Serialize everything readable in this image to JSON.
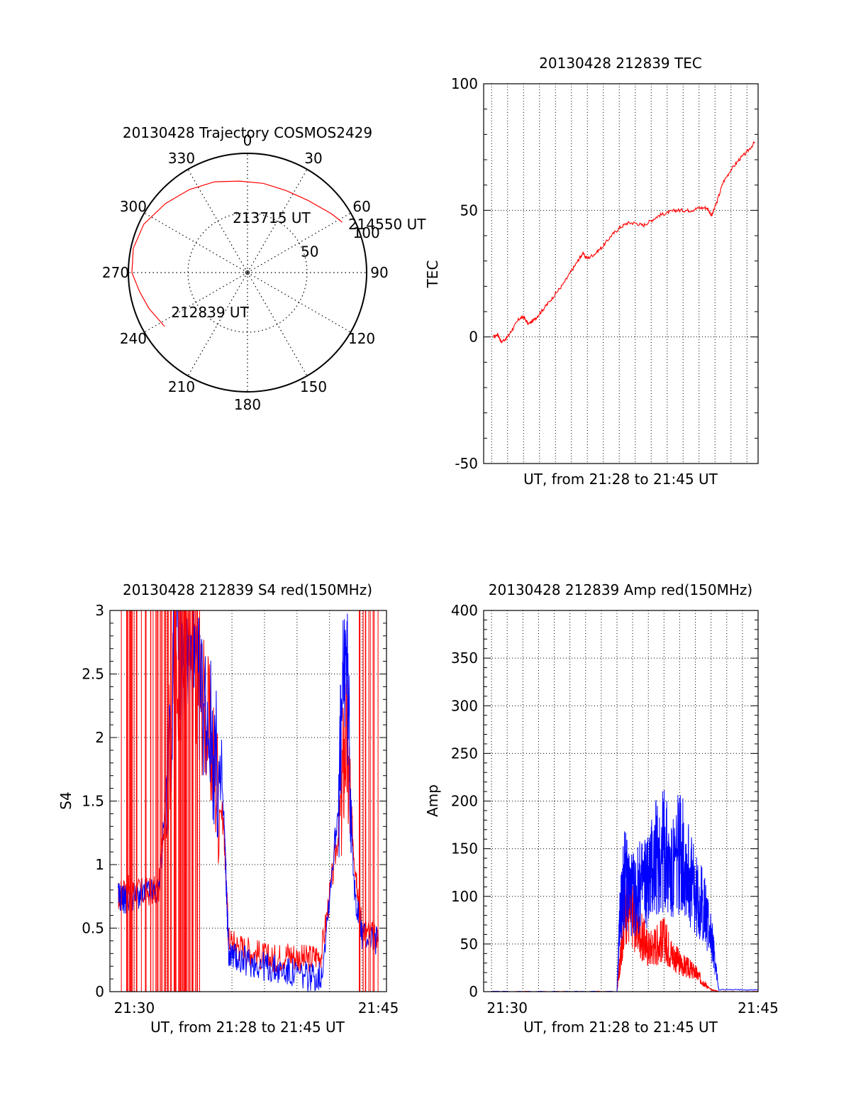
{
  "colors": {
    "red": "#ff0000",
    "blue": "#0000ff",
    "axis": "#000000"
  },
  "chart_data": [
    {
      "id": "polar",
      "type": "polar-trajectory",
      "title": "20130428 Trajectory COSMOS2429",
      "angle_labels": [
        "0",
        "30",
        "60",
        "90",
        "120",
        "150",
        "180",
        "210",
        "240",
        "270",
        "300",
        "330"
      ],
      "radial_labels": [
        "50",
        "100"
      ],
      "radial_ticks": [
        50,
        100
      ],
      "max_radius": 100,
      "series": [
        {
          "color": "red",
          "points": [
            [
              237,
              83
            ],
            [
              250,
              88
            ],
            [
              260,
              92
            ],
            [
              270,
              97
            ],
            [
              282,
              98
            ],
            [
              295,
              96
            ],
            [
              310,
              90
            ],
            [
              325,
              85
            ],
            [
              340,
              81
            ],
            [
              355,
              77
            ],
            [
              10,
              76
            ],
            [
              25,
              76
            ],
            [
              40,
              79
            ],
            [
              55,
              86
            ],
            [
              62,
              90
            ]
          ]
        }
      ],
      "annotations": [
        {
          "text": "214550 UT",
          "az": 64,
          "r": 94
        },
        {
          "text": "213715 UT",
          "az": 345,
          "r": 48
        },
        {
          "text": "212839 UT",
          "az": 243,
          "r": 72
        }
      ]
    },
    {
      "id": "tec",
      "type": "line",
      "title": "20130428 212839 TEC",
      "ylabel": "TEC",
      "xlabel": "UT, from 21:28 to 21:45 UT",
      "ylim": [
        -50,
        100
      ],
      "yticks": [
        "-50",
        "0",
        "50",
        "100"
      ],
      "xlim": [
        0,
        17.2
      ],
      "xgrid": [
        0.5,
        1.5,
        2.5,
        3.5,
        4.5,
        5.5,
        6.5,
        7.5,
        8.5,
        9.5,
        10.5,
        11.5,
        12.5,
        13.5,
        14.5,
        15.5,
        16.5
      ],
      "series": [
        {
          "color": "red",
          "points": [
            [
              0.6,
              0
            ],
            [
              0.9,
              1
            ],
            [
              1.1,
              -2
            ],
            [
              1.5,
              0
            ],
            [
              1.8,
              3
            ],
            [
              2.2,
              7
            ],
            [
              2.5,
              8
            ],
            [
              2.8,
              5
            ],
            [
              3.2,
              7
            ],
            [
              3.6,
              10
            ],
            [
              4.0,
              13
            ],
            [
              4.5,
              17
            ],
            [
              5.0,
              21
            ],
            [
              5.5,
              26
            ],
            [
              5.9,
              30
            ],
            [
              6.2,
              33
            ],
            [
              6.5,
              31
            ],
            [
              7.0,
              33
            ],
            [
              7.5,
              36
            ],
            [
              8.0,
              40
            ],
            [
              8.5,
              43
            ],
            [
              9.0,
              45
            ],
            [
              9.5,
              45
            ],
            [
              10.0,
              44
            ],
            [
              10.5,
              46
            ],
            [
              11.0,
              48
            ],
            [
              11.5,
              49
            ],
            [
              12.0,
              50
            ],
            [
              12.5,
              50
            ],
            [
              13.0,
              50
            ],
            [
              13.5,
              51
            ],
            [
              14.0,
              51
            ],
            [
              14.3,
              48
            ],
            [
              14.6,
              53
            ],
            [
              15.0,
              61
            ],
            [
              15.5,
              66
            ],
            [
              16.0,
              70
            ],
            [
              16.5,
              73
            ],
            [
              17.0,
              77
            ]
          ]
        }
      ]
    },
    {
      "id": "s4",
      "type": "line",
      "title": "20130428 212839 S4 red(150MHz)",
      "ylabel": "S4",
      "xlabel": "UT, from 21:28 to 21:45 UT",
      "ylim": [
        0,
        3
      ],
      "yticks": [
        "0",
        "0.5",
        "1",
        "1.5",
        "2",
        "2.5",
        "3"
      ],
      "xlim": [
        0,
        17
      ],
      "xticks": [
        {
          "x": 1.5,
          "label": "21:30"
        },
        {
          "x": 16.5,
          "label": "21:45"
        }
      ],
      "xgrid": [
        1.5,
        3.5,
        5.5,
        7.5,
        9.5,
        11.5,
        13.5,
        15.5
      ],
      "series": [
        {
          "color": "red",
          "points": [
            [
              0.5,
              0.75
            ],
            [
              1.0,
              0.8
            ],
            [
              2.0,
              0.78
            ],
            [
              3.0,
              0.8
            ],
            [
              4.0,
              2.5
            ],
            [
              5.0,
              2.7
            ],
            [
              6.0,
              2.1
            ],
            [
              7.0,
              1.3
            ],
            [
              7.3,
              0.4
            ],
            [
              8.0,
              0.35
            ],
            [
              9.0,
              0.3
            ],
            [
              10.0,
              0.25
            ],
            [
              11.0,
              0.3
            ],
            [
              12.0,
              0.25
            ],
            [
              13.0,
              0.3
            ],
            [
              14.0,
              1.2
            ],
            [
              14.5,
              2.0
            ],
            [
              15.0,
              1.1
            ],
            [
              15.5,
              0.5
            ],
            [
              16.5,
              0.4
            ]
          ]
        },
        {
          "color": "blue",
          "points": [
            [
              0.5,
              0.75
            ],
            [
              1.0,
              0.72
            ],
            [
              2.0,
              0.77
            ],
            [
              3.0,
              0.78
            ],
            [
              4.0,
              2.6
            ],
            [
              5.0,
              2.5
            ],
            [
              6.0,
              2.2
            ],
            [
              7.0,
              1.4
            ],
            [
              7.3,
              0.3
            ],
            [
              8.0,
              0.25
            ],
            [
              9.0,
              0.22
            ],
            [
              10.0,
              0.18
            ],
            [
              11.0,
              0.15
            ],
            [
              12.0,
              0.12
            ],
            [
              13.0,
              0.12
            ],
            [
              14.0,
              1.4
            ],
            [
              14.5,
              2.8
            ],
            [
              15.0,
              0.8
            ],
            [
              15.5,
              0.45
            ],
            [
              16.5,
              0.4
            ]
          ]
        }
      ]
    },
    {
      "id": "amp",
      "type": "line",
      "title": "20130428 212839 Amp red(150MHz)",
      "ylabel": "Amp",
      "xlabel": "UT, from 21:28 to 21:45 UT",
      "ylim": [
        0,
        400
      ],
      "yticks": [
        "0",
        "50",
        "100",
        "150",
        "200",
        "250",
        "300",
        "350",
        "400"
      ],
      "xlim": [
        0,
        17.5
      ],
      "xticks": [
        {
          "x": 1.5,
          "label": "21:30"
        },
        {
          "x": 17.5,
          "label": "21:45"
        }
      ],
      "xgrid": [
        0.5,
        1.5,
        2.5,
        3.5,
        4.5,
        5.5,
        6.5,
        7.5,
        8.5,
        9.5,
        10.5,
        11.5,
        12.5,
        13.5,
        14.5,
        15.5,
        16.5
      ],
      "series": [
        {
          "color": "red",
          "points": [
            [
              0.5,
              0
            ],
            [
              8.5,
              0
            ],
            [
              8.7,
              30
            ],
            [
              9.0,
              90
            ],
            [
              9.5,
              80
            ],
            [
              10.0,
              60
            ],
            [
              10.5,
              45
            ],
            [
              11.0,
              50
            ],
            [
              11.5,
              55
            ],
            [
              12.0,
              40
            ],
            [
              12.5,
              30
            ],
            [
              13.0,
              25
            ],
            [
              13.5,
              20
            ],
            [
              14.0,
              10
            ],
            [
              14.5,
              2
            ],
            [
              15.0,
              0
            ],
            [
              17.5,
              0
            ]
          ]
        },
        {
          "color": "blue",
          "points": [
            [
              0.5,
              0
            ],
            [
              8.5,
              0
            ],
            [
              8.7,
              80
            ],
            [
              9.0,
              120
            ],
            [
              9.5,
              100
            ],
            [
              10.0,
              110
            ],
            [
              10.5,
              120
            ],
            [
              11.0,
              140
            ],
            [
              11.5,
              150
            ],
            [
              12.0,
              120
            ],
            [
              12.5,
              150
            ],
            [
              13.0,
              130
            ],
            [
              13.5,
              100
            ],
            [
              14.0,
              90
            ],
            [
              14.5,
              60
            ],
            [
              15.0,
              2
            ],
            [
              17.5,
              2
            ]
          ]
        }
      ]
    }
  ]
}
